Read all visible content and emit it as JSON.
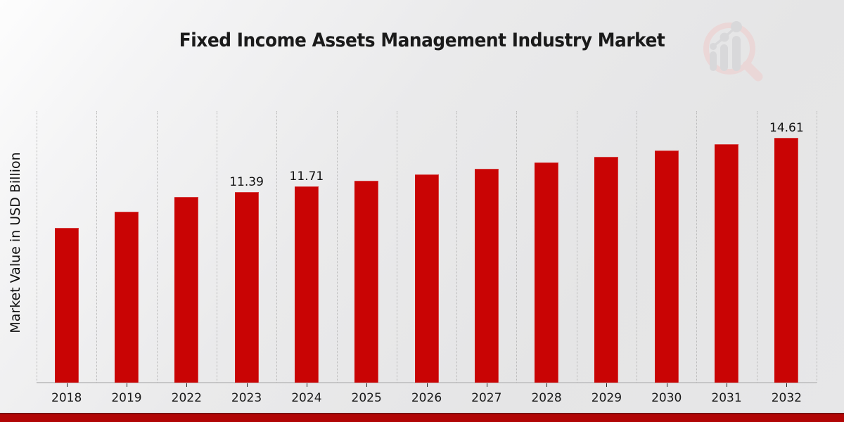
{
  "chart_data": {
    "type": "bar",
    "title": "Fixed Income Assets Management Industry Market",
    "xlabel": "",
    "ylabel": "Market Value in USD Billion",
    "categories": [
      "2018",
      "2019",
      "2022",
      "2023",
      "2024",
      "2025",
      "2026",
      "2027",
      "2028",
      "2029",
      "2030",
      "2031",
      "2032"
    ],
    "values": [
      9.23,
      10.2,
      11.08,
      11.39,
      11.71,
      12.05,
      12.42,
      12.76,
      13.14,
      13.47,
      13.85,
      14.23,
      14.61
    ],
    "data_labels": [
      null,
      null,
      null,
      "11.39",
      "11.71",
      null,
      null,
      null,
      null,
      null,
      null,
      null,
      "14.61"
    ],
    "ylim": [
      0,
      16.2
    ],
    "grid": "vertical-dotted",
    "legend": "none",
    "bar_color": "#c90404"
  },
  "colors": {
    "bar": "#c90404",
    "bottom_band": "#b10505",
    "bottom_band_border": "#7c0101",
    "gridline": "#b9b9b9",
    "axis_line": "#c6c6c7",
    "text": "#1a1a1a",
    "logo_ring": "#ecd5d5",
    "logo_bars": "#d6d6d8"
  },
  "logo": {
    "icon": "magnifier-bar-chart-logo"
  }
}
